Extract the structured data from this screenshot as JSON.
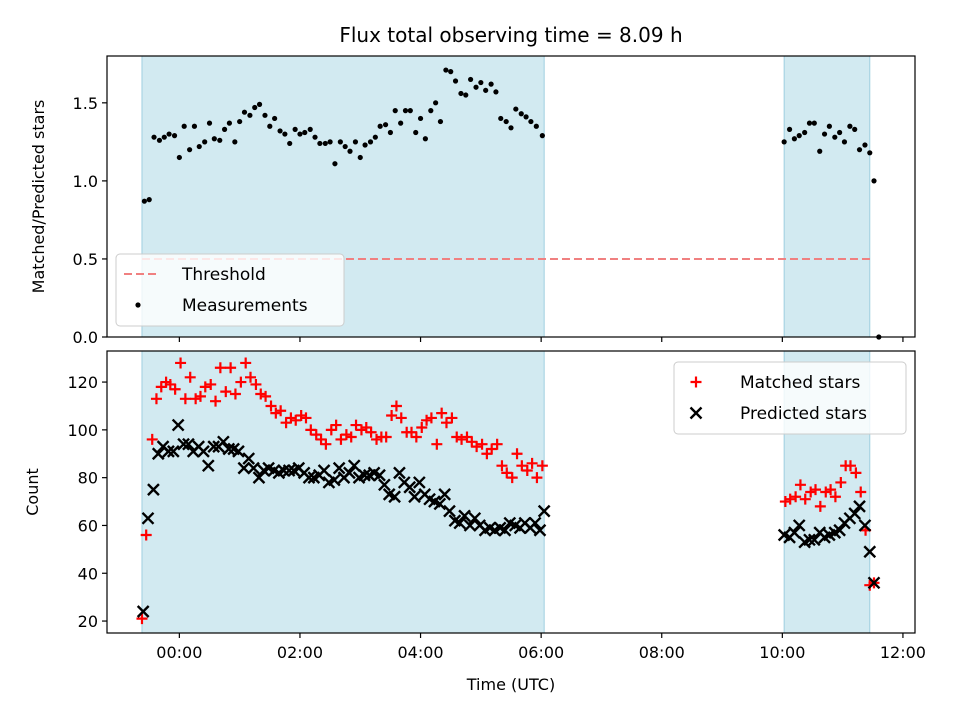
{
  "chart_data": {
    "title": "Flux total observing time = 8.09 h",
    "xlabel": "Time (UTC)",
    "x_type": "time",
    "x_unit": "hours UTC",
    "xlim": [
      -1.2,
      12.2
    ],
    "x_tick_values": [
      0,
      2,
      4,
      6,
      8,
      10,
      12
    ],
    "x_tick_labels": [
      "00:00",
      "02:00",
      "04:00",
      "06:00",
      "08:00",
      "10:00",
      "12:00"
    ],
    "shaded_intervals": [
      [
        -0.62,
        6.05
      ],
      [
        10.03,
        11.45
      ]
    ],
    "shade_color": "#add8e6",
    "panels": [
      {
        "type": "scatter",
        "ylabel": "Matched/Predicted stars",
        "ylim": [
          0,
          1.8
        ],
        "y_ticks": [
          0.0,
          0.5,
          1.0,
          1.5
        ],
        "y_tick_labels": [
          "0.0",
          "0.5",
          "1.0",
          "1.5"
        ],
        "legend_position": "lower-left",
        "threshold": {
          "name": "Threshold",
          "y": 0.5,
          "x_range": [
            -0.62,
            11.5
          ],
          "color": "#f08080",
          "style": "dashed"
        },
        "series": [
          {
            "name": "Measurements",
            "marker": "dot",
            "color": "#000000",
            "x": [
              -0.58,
              -0.5,
              -0.42,
              -0.33,
              -0.25,
              -0.17,
              -0.08,
              0.0,
              0.08,
              0.17,
              0.25,
              0.33,
              0.42,
              0.5,
              0.58,
              0.67,
              0.75,
              0.83,
              0.92,
              1.0,
              1.08,
              1.17,
              1.25,
              1.33,
              1.42,
              1.5,
              1.58,
              1.67,
              1.75,
              1.83,
              1.92,
              2.0,
              2.08,
              2.17,
              2.25,
              2.33,
              2.42,
              2.5,
              2.58,
              2.67,
              2.75,
              2.83,
              2.92,
              3.0,
              3.08,
              3.17,
              3.25,
              3.33,
              3.42,
              3.5,
              3.58,
              3.67,
              3.75,
              3.83,
              3.92,
              4.0,
              4.08,
              4.17,
              4.25,
              4.33,
              4.42,
              4.5,
              4.58,
              4.67,
              4.75,
              4.83,
              4.92,
              5.0,
              5.08,
              5.17,
              5.25,
              5.33,
              5.42,
              5.5,
              5.58,
              5.67,
              5.75,
              5.83,
              5.92,
              6.02,
              10.03,
              10.12,
              10.2,
              10.28,
              10.37,
              10.45,
              10.53,
              10.62,
              10.7,
              10.78,
              10.87,
              10.95,
              11.03,
              11.12,
              11.2,
              11.28,
              11.37,
              11.45,
              11.52
            ],
            "y": [
              0.87,
              0.88,
              1.28,
              1.26,
              1.28,
              1.3,
              1.29,
              1.15,
              1.35,
              1.2,
              1.35,
              1.22,
              1.25,
              1.37,
              1.27,
              1.26,
              1.33,
              1.37,
              1.25,
              1.38,
              1.44,
              1.42,
              1.47,
              1.49,
              1.42,
              1.35,
              1.4,
              1.32,
              1.3,
              1.24,
              1.33,
              1.3,
              1.31,
              1.33,
              1.28,
              1.24,
              1.24,
              1.25,
              1.11,
              1.25,
              1.22,
              1.19,
              1.25,
              1.15,
              1.23,
              1.25,
              1.28,
              1.35,
              1.36,
              1.31,
              1.45,
              1.37,
              1.45,
              1.45,
              1.31,
              1.4,
              1.27,
              1.45,
              1.5,
              1.38,
              1.71,
              1.7,
              1.64,
              1.56,
              1.55,
              1.65,
              1.6,
              1.63,
              1.58,
              1.62,
              1.57,
              1.4,
              1.38,
              1.34,
              1.46,
              1.43,
              1.41,
              1.38,
              1.35,
              1.29,
              1.25,
              1.33,
              1.27,
              1.29,
              1.31,
              1.37,
              1.37,
              1.19,
              1.3,
              1.35,
              1.28,
              1.31,
              1.25,
              1.35,
              1.33,
              1.2,
              1.23,
              1.18,
              1.0
            ]
          }
        ],
        "extra_point": {
          "x": 11.6,
          "y": 0.0
        }
      },
      {
        "type": "scatter",
        "ylabel": "Count",
        "ylim": [
          15,
          133
        ],
        "y_ticks": [
          20,
          40,
          60,
          80,
          100,
          120
        ],
        "y_tick_labels": [
          "20",
          "40",
          "60",
          "80",
          "100",
          "120"
        ],
        "legend_position": "upper-right",
        "series": [
          {
            "name": "Matched stars",
            "marker": "plus",
            "color": "#ff0000",
            "x": [
              -0.62,
              -0.55,
              -0.45,
              -0.38,
              -0.3,
              -0.22,
              -0.15,
              -0.07,
              0.02,
              0.1,
              0.18,
              0.27,
              0.35,
              0.43,
              0.52,
              0.6,
              0.68,
              0.77,
              0.85,
              0.93,
              1.02,
              1.1,
              1.18,
              1.27,
              1.35,
              1.43,
              1.52,
              1.6,
              1.68,
              1.77,
              1.85,
              1.93,
              2.02,
              2.1,
              2.18,
              2.27,
              2.35,
              2.43,
              2.52,
              2.6,
              2.68,
              2.77,
              2.85,
              2.93,
              3.02,
              3.1,
              3.18,
              3.27,
              3.35,
              3.43,
              3.52,
              3.6,
              3.68,
              3.77,
              3.85,
              3.93,
              4.02,
              4.1,
              4.18,
              4.27,
              4.35,
              4.43,
              4.52,
              4.6,
              4.68,
              4.77,
              4.85,
              4.93,
              5.02,
              5.1,
              5.18,
              5.27,
              5.35,
              5.43,
              5.52,
              5.6,
              5.68,
              5.77,
              5.85,
              5.93,
              6.02,
              10.05,
              10.13,
              10.22,
              10.3,
              10.38,
              10.47,
              10.55,
              10.63,
              10.72,
              10.8,
              10.88,
              10.97,
              11.05,
              11.13,
              11.22,
              11.3,
              11.38,
              11.45,
              11.52
            ],
            "y": [
              21,
              56,
              96,
              113,
              118,
              120,
              119,
              117,
              128,
              113,
              122,
              113,
              114,
              118,
              119,
              112,
              126,
              116,
              126,
              115,
              120,
              128,
              122,
              119,
              115,
              114,
              110,
              107,
              108,
              103,
              105,
              104,
              106,
              105,
              100,
              98,
              96,
              94,
              100,
              102,
              96,
              98,
              97,
              102,
              100,
              101,
              99,
              96,
              97,
              97,
              106,
              110,
              105,
              99,
              99,
              97,
              101,
              104,
              105,
              94,
              107,
              103,
              105,
              97,
              96,
              97,
              95,
              93,
              94,
              90,
              92,
              94,
              85,
              82,
              80,
              90,
              85,
              83,
              86,
              80,
              85,
              70,
              71,
              72,
              77,
              71,
              74,
              75,
              68,
              74,
              75,
              72,
              78,
              85,
              85,
              82,
              74,
              58,
              35,
              36
            ]
          },
          {
            "name": "Predicted stars",
            "marker": "x",
            "color": "#000000",
            "x": [
              -0.6,
              -0.52,
              -0.43,
              -0.35,
              -0.27,
              -0.18,
              -0.1,
              -0.02,
              0.07,
              0.15,
              0.23,
              0.32,
              0.4,
              0.48,
              0.57,
              0.65,
              0.73,
              0.82,
              0.9,
              0.98,
              1.07,
              1.15,
              1.23,
              1.32,
              1.4,
              1.48,
              1.57,
              1.65,
              1.73,
              1.82,
              1.9,
              1.98,
              2.07,
              2.15,
              2.23,
              2.32,
              2.4,
              2.48,
              2.57,
              2.65,
              2.73,
              2.82,
              2.9,
              2.98,
              3.07,
              3.15,
              3.23,
              3.32,
              3.4,
              3.48,
              3.57,
              3.65,
              3.73,
              3.82,
              3.9,
              3.98,
              4.07,
              4.15,
              4.23,
              4.32,
              4.4,
              4.48,
              4.57,
              4.65,
              4.73,
              4.82,
              4.9,
              4.98,
              5.07,
              5.15,
              5.23,
              5.32,
              5.4,
              5.48,
              5.57,
              5.65,
              5.73,
              5.82,
              5.9,
              5.98,
              6.05,
              10.03,
              10.12,
              10.2,
              10.28,
              10.37,
              10.45,
              10.53,
              10.62,
              10.7,
              10.78,
              10.87,
              10.95,
              11.03,
              11.12,
              11.2,
              11.28,
              11.37,
              11.45,
              11.52
            ],
            "y": [
              24,
              63,
              75,
              90,
              93,
              91,
              91,
              102,
              94,
              94,
              91,
              93,
              91,
              85,
              93,
              93,
              95,
              92,
              92,
              91,
              84,
              88,
              84,
              80,
              83,
              84,
              83,
              82,
              83,
              83,
              83,
              84,
              82,
              80,
              80,
              81,
              83,
              78,
              79,
              84,
              80,
              82,
              85,
              80,
              81,
              81,
              82,
              81,
              77,
              73,
              72,
              82,
              78,
              76,
              72,
              78,
              73,
              71,
              70,
              69,
              73,
              66,
              62,
              61,
              64,
              60,
              63,
              60,
              58,
              59,
              58,
              59,
              58,
              61,
              60,
              59,
              61,
              59,
              61,
              58,
              66,
              56,
              55,
              57,
              60,
              53,
              54,
              54,
              57,
              55,
              56,
              57,
              58,
              61,
              63,
              65,
              68,
              60,
              49,
              36
            ]
          }
        ]
      }
    ]
  }
}
